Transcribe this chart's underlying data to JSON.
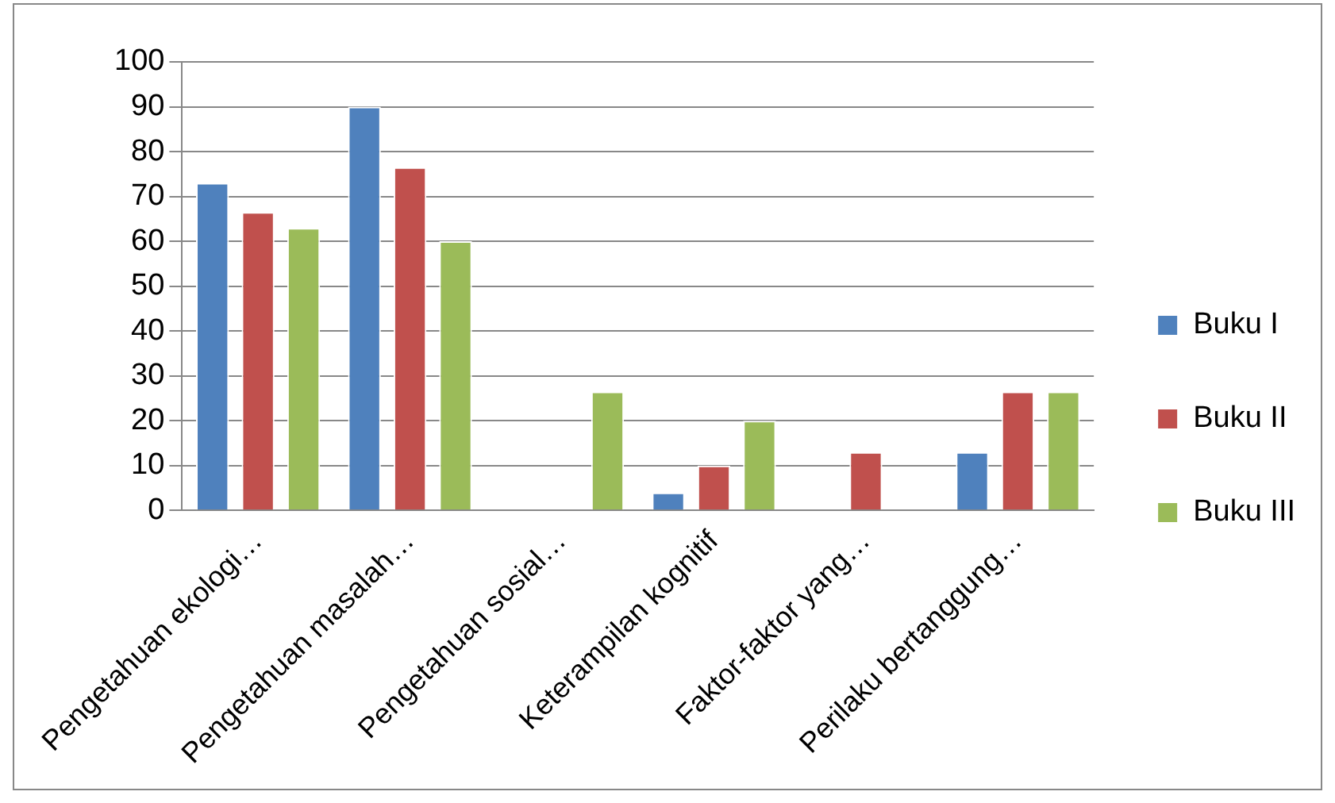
{
  "chart_data": {
    "type": "bar",
    "categories": [
      "Pengetahuan ekologi…",
      "Pengetahuan masalah…",
      "Pengetahuan sosial…",
      "Keterampilan kognitif",
      "Faktor-faktor yang…",
      "Perilaku bertanggung…"
    ],
    "series": [
      {
        "name": "Buku I",
        "color": "#4f81bd",
        "values": [
          73,
          90,
          0,
          4,
          0,
          13
        ]
      },
      {
        "name": "Buku II",
        "color": "#c0504d",
        "values": [
          66.5,
          76.5,
          0,
          10,
          13,
          26.5
        ]
      },
      {
        "name": "Buku III",
        "color": "#9bbb59",
        "values": [
          63,
          60,
          26.5,
          20,
          0,
          26.5
        ]
      }
    ],
    "ylim": [
      0,
      100
    ],
    "yticks": [
      0,
      10,
      20,
      30,
      40,
      50,
      60,
      70,
      80,
      90,
      100
    ],
    "grid": "y",
    "legend": "right"
  }
}
